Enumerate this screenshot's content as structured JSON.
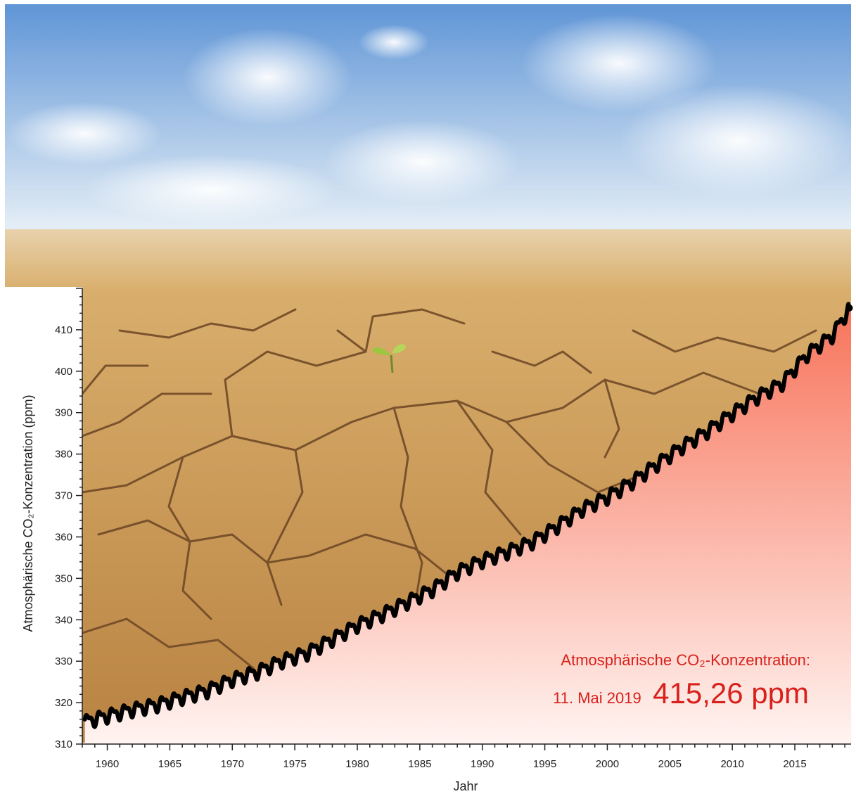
{
  "colors": {
    "sky_top": "#5f95d6",
    "sky_bottom": "#e9f1f7",
    "soil_light": "#d9ae6c",
    "soil_dark": "#b98342",
    "crack": "#6b4524",
    "area_top": "#f7735a",
    "area_bottom": "#fff4f1",
    "series": "#000000",
    "annotation": "#d8211c"
  },
  "chart_data": {
    "type": "line",
    "xlabel": "Jahr",
    "ylabel": "Atmosphärische CO₂-Konzentration (ppm)",
    "xlim": [
      1958,
      2019.5
    ],
    "ylim": [
      310,
      420
    ],
    "x_ticks": [
      1960,
      1965,
      1970,
      1975,
      1980,
      1985,
      1990,
      1995,
      2000,
      2005,
      2010,
      2015
    ],
    "y_ticks": [
      310,
      320,
      330,
      340,
      350,
      360,
      370,
      380,
      390,
      400,
      410
    ],
    "grid": false,
    "series": [
      {
        "x": [
          1958,
          1960,
          1962,
          1964,
          1966,
          1968,
          1970,
          1972,
          1974,
          1976,
          1978,
          1980,
          1982,
          1984,
          1986,
          1988,
          1990,
          1992,
          1994,
          1996,
          1998,
          2000,
          2002,
          2004,
          2006,
          2008,
          2010,
          2012,
          2014,
          2016,
          2018,
          2019.36
        ],
        "y": [
          315.3,
          316.9,
          318.4,
          319.6,
          321.4,
          323.0,
          325.7,
          327.5,
          330.2,
          332.1,
          335.4,
          338.8,
          341.4,
          344.4,
          347.4,
          351.6,
          354.4,
          356.5,
          358.9,
          362.7,
          366.8,
          369.7,
          373.4,
          377.7,
          381.9,
          385.6,
          389.9,
          393.9,
          397.2,
          404.2,
          408.7,
          415.26
        ],
        "seasonal_amplitude_ppm": 3
      }
    ],
    "annotation": {
      "title": "Atmosphärische CO₂-Konzentration:",
      "date": "11. Mai 2019",
      "value": "415,26 ppm"
    }
  }
}
